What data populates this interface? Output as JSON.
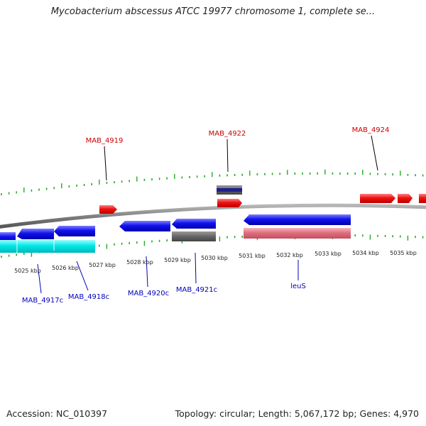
{
  "title": "Mycobacterium abscessus ATCC 19977 chromosome 1, complete se...",
  "footer": {
    "accession": "Accession: NC_010397",
    "stats": "Topology: circular; Length: 5,067,172 bp; Genes: 4,970"
  },
  "colors": {
    "forward_gene": "#ee1111",
    "reverse_gene": "#1111ee",
    "top_label": "#cc0000",
    "bottom_label": "#0000bb",
    "tick": "#22aa22",
    "backbone": "#808080",
    "rna_feature": "#00e8e8",
    "pseudo_forward": "#e07080",
    "other_feature": "#666666"
  },
  "scale_labels": [
    "5025 kbp",
    "5026 kbp",
    "5027 kbp",
    "5028 kbp",
    "5029 kbp",
    "5030 kbp",
    "5031 kbp",
    "5032 kbp",
    "5033 kbp",
    "5034 kbp",
    "5035 kbp"
  ],
  "top_labels": [
    "MAB_4919",
    "MAB_4922",
    "MAB_4924"
  ],
  "bottom_labels": [
    "MAB_4917c",
    "MAB_4918c",
    "MAB_4920c",
    "MAB_4921c",
    "leuS"
  ]
}
